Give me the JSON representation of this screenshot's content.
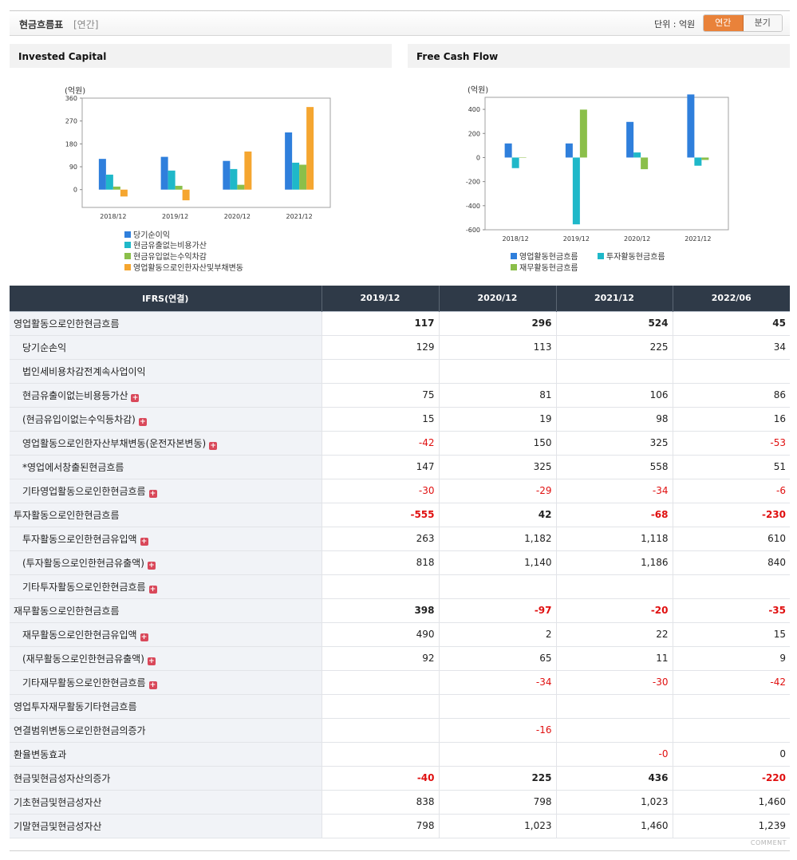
{
  "header": {
    "title": "현금흐름표",
    "subtitle": "[연간]",
    "unit_label": "단위 : 억원",
    "toggle_annual": "연간",
    "toggle_quarter": "분기"
  },
  "colors": {
    "blue": "#2f7fdc",
    "teal": "#1fb8c9",
    "green": "#8bbf4a",
    "orange": "#f5a630",
    "table_header": "#2f3a48",
    "negative": "#e01010",
    "accent": "#e9823a"
  },
  "chart_data": [
    {
      "type": "bar",
      "title": "Invested Capital",
      "ylabel": "(억원)",
      "categories": [
        "2018/12",
        "2019/12",
        "2020/12",
        "2021/12"
      ],
      "ylim": [
        -70,
        360
      ],
      "yticks": [
        0,
        90,
        180,
        270,
        360
      ],
      "grid": false,
      "legend_position": "bottom",
      "series": [
        {
          "name": "당기순이익",
          "color": "#2f7fdc",
          "values": [
            121,
            129,
            113,
            225
          ]
        },
        {
          "name": "현금유출없는비용가산",
          "color": "#1fb8c9",
          "values": [
            59,
            75,
            81,
            106
          ]
        },
        {
          "name": "현금유입없는수익차감",
          "color": "#8bbf4a",
          "values": [
            12,
            15,
            19,
            98
          ]
        },
        {
          "name": "영업활동으로인한자산및부채변동",
          "color": "#f5a630",
          "values": [
            -27,
            -42,
            150,
            325
          ]
        }
      ]
    },
    {
      "type": "bar",
      "title": "Free Cash Flow",
      "ylabel": "(억원)",
      "categories": [
        "2018/12",
        "2019/12",
        "2020/12",
        "2021/12"
      ],
      "ylim": [
        -600,
        500
      ],
      "yticks": [
        -600,
        -400,
        -200,
        0,
        200,
        400
      ],
      "grid": false,
      "legend_position": "bottom",
      "series": [
        {
          "name": "영업활동현금흐름",
          "color": "#2f7fdc",
          "values": [
            117,
            117,
            296,
            524
          ]
        },
        {
          "name": "투자활동현금흐름",
          "color": "#1fb8c9",
          "values": [
            -88,
            -555,
            42,
            -68
          ]
        },
        {
          "name": "재무활동현금흐름",
          "color": "#8bbf4a",
          "values": [
            0,
            398,
            -97,
            -20
          ]
        }
      ]
    }
  ],
  "table": {
    "header": [
      "IFRS(연결)",
      "2019/12",
      "2020/12",
      "2021/12",
      "2022/06"
    ],
    "rows": [
      {
        "label": "영업활동으로인한현금흐름",
        "level": 0,
        "bold": true,
        "values": [
          "117",
          "296",
          "524",
          "45"
        ]
      },
      {
        "label": "당기순손익",
        "level": 1,
        "values": [
          "129",
          "113",
          "225",
          "34"
        ]
      },
      {
        "label": "법인세비용차감전계속사업이익",
        "level": 1,
        "values": [
          "",
          "",
          "",
          ""
        ]
      },
      {
        "label": "현금유출이없는비용등가산",
        "level": 1,
        "expand": true,
        "values": [
          "75",
          "81",
          "106",
          "86"
        ]
      },
      {
        "label": "(현금유입이없는수익등차감)",
        "level": 1,
        "expand": true,
        "values": [
          "15",
          "19",
          "98",
          "16"
        ]
      },
      {
        "label": "영업활동으로인한자산부채변동(운전자본변동)",
        "level": 1,
        "expand": true,
        "values": [
          "-42",
          "150",
          "325",
          "-53"
        ]
      },
      {
        "label": "*영업에서창출된현금흐름",
        "level": 1,
        "values": [
          "147",
          "325",
          "558",
          "51"
        ]
      },
      {
        "label": "기타영업활동으로인한현금흐름",
        "level": 1,
        "expand": true,
        "values": [
          "-30",
          "-29",
          "-34",
          "-6"
        ]
      },
      {
        "label": "투자활동으로인한현금흐름",
        "level": 0,
        "bold": true,
        "values": [
          "-555",
          "42",
          "-68",
          "-230"
        ]
      },
      {
        "label": "투자활동으로인한현금유입액",
        "level": 1,
        "expand": true,
        "values": [
          "263",
          "1,182",
          "1,118",
          "610"
        ]
      },
      {
        "label": "(투자활동으로인한현금유출액)",
        "level": 1,
        "expand": true,
        "values": [
          "818",
          "1,140",
          "1,186",
          "840"
        ]
      },
      {
        "label": "기타투자활동으로인한현금흐름",
        "level": 1,
        "expand": true,
        "values": [
          "",
          "",
          "",
          ""
        ]
      },
      {
        "label": "재무활동으로인한현금흐름",
        "level": 0,
        "bold": true,
        "values": [
          "398",
          "-97",
          "-20",
          "-35"
        ]
      },
      {
        "label": "재무활동으로인한현금유입액",
        "level": 1,
        "expand": true,
        "values": [
          "490",
          "2",
          "22",
          "15"
        ]
      },
      {
        "label": "(재무활동으로인한현금유출액)",
        "level": 1,
        "expand": true,
        "values": [
          "92",
          "65",
          "11",
          "9"
        ]
      },
      {
        "label": "기타재무활동으로인한현금흐름",
        "level": 1,
        "expand": true,
        "values": [
          "",
          "-34",
          "-30",
          "-42"
        ]
      },
      {
        "label": "영업투자재무활동기타현금흐름",
        "level": 0,
        "values": [
          "",
          "",
          "",
          ""
        ]
      },
      {
        "label": "연결범위변동으로인한현금의증가",
        "level": 0,
        "values": [
          "",
          "-16",
          "",
          ""
        ]
      },
      {
        "label": "환율변동효과",
        "level": 0,
        "values": [
          "",
          "",
          "-0",
          "0"
        ]
      },
      {
        "label": "현금및현금성자산의증가",
        "level": 0,
        "bold": true,
        "values": [
          "-40",
          "225",
          "436",
          "-220"
        ]
      },
      {
        "label": "기초현금및현금성자산",
        "level": 0,
        "values": [
          "838",
          "798",
          "1,023",
          "1,460"
        ]
      },
      {
        "label": "기말현금및현금성자산",
        "level": 0,
        "values": [
          "798",
          "1,023",
          "1,460",
          "1,239"
        ]
      }
    ]
  },
  "footer": {
    "comment_label": "COMMENT"
  }
}
